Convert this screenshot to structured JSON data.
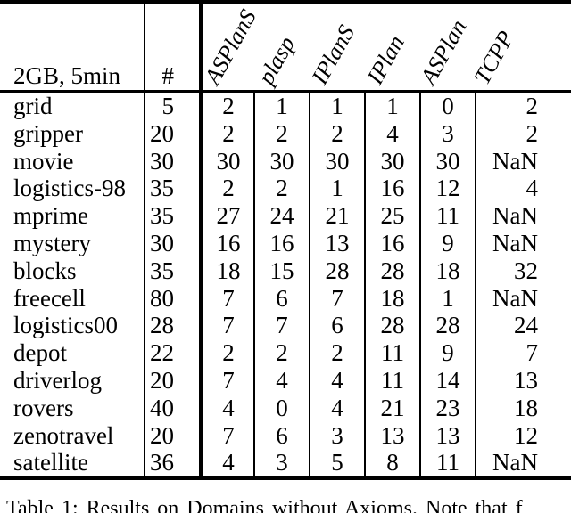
{
  "table": {
    "corner_label": "2GB, 5min",
    "count_header": "#",
    "planners": [
      "ASPlanS",
      "plasp",
      "IPlanS",
      "IPlan",
      "ASPlan",
      "TCPP"
    ],
    "rows": [
      {
        "domain": "grid",
        "count": "5",
        "values": [
          "2",
          "1",
          "1",
          "1",
          "0",
          "2"
        ]
      },
      {
        "domain": "gripper",
        "count": "20",
        "values": [
          "2",
          "2",
          "2",
          "4",
          "3",
          "2"
        ]
      },
      {
        "domain": "movie",
        "count": "30",
        "values": [
          "30",
          "30",
          "30",
          "30",
          "30",
          "NaN"
        ]
      },
      {
        "domain": "logistics-98",
        "count": "35",
        "values": [
          "2",
          "2",
          "1",
          "16",
          "12",
          "4"
        ]
      },
      {
        "domain": "mprime",
        "count": "35",
        "values": [
          "27",
          "24",
          "21",
          "25",
          "11",
          "NaN"
        ]
      },
      {
        "domain": "mystery",
        "count": "30",
        "values": [
          "16",
          "16",
          "13",
          "16",
          "9",
          "NaN"
        ]
      },
      {
        "domain": "blocks",
        "count": "35",
        "values": [
          "18",
          "15",
          "28",
          "28",
          "18",
          "32"
        ]
      },
      {
        "domain": "freecell",
        "count": "80",
        "values": [
          "7",
          "6",
          "7",
          "18",
          "1",
          "NaN"
        ]
      },
      {
        "domain": "logistics00",
        "count": "28",
        "values": [
          "7",
          "7",
          "6",
          "28",
          "28",
          "24"
        ]
      },
      {
        "domain": "depot",
        "count": "22",
        "values": [
          "2",
          "2",
          "2",
          "11",
          "9",
          "7"
        ]
      },
      {
        "domain": "driverlog",
        "count": "20",
        "values": [
          "7",
          "4",
          "4",
          "11",
          "14",
          "13"
        ]
      },
      {
        "domain": "rovers",
        "count": "40",
        "values": [
          "4",
          "0",
          "4",
          "21",
          "23",
          "18"
        ]
      },
      {
        "domain": "zenotravel",
        "count": "20",
        "values": [
          "7",
          "6",
          "3",
          "13",
          "13",
          "12"
        ]
      },
      {
        "domain": "satellite",
        "count": "36",
        "values": [
          "4",
          "3",
          "5",
          "8",
          "11",
          "NaN"
        ]
      }
    ]
  },
  "caption": "Table 1: Results on Domains without Axioms. Note that f",
  "colors": {
    "text": "#000000",
    "background": "#ffffff",
    "rule": "#000000"
  }
}
